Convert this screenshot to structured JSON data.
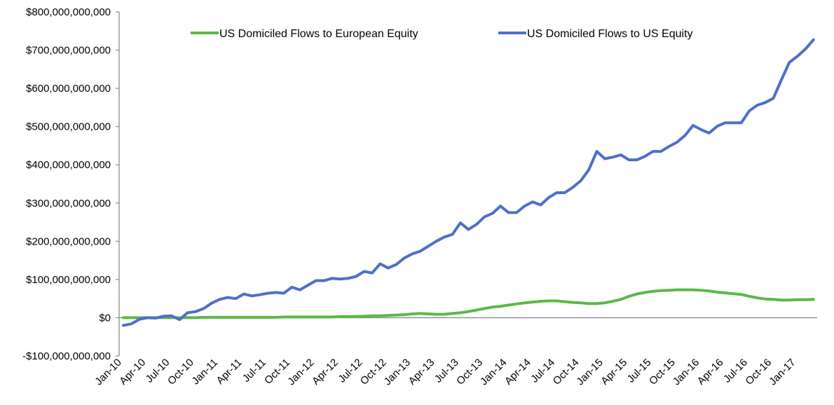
{
  "chart_data": {
    "type": "line",
    "title": "",
    "xlabel": "",
    "ylabel": "",
    "ylim": [
      -100000000000,
      800000000000
    ],
    "y_ticks": [
      -100000000000,
      0,
      100000000000,
      200000000000,
      300000000000,
      400000000000,
      500000000000,
      600000000000,
      700000000000,
      800000000000
    ],
    "y_tick_labels": [
      "-$100,000,000,000",
      "$0",
      "$100,000,000,000",
      "$200,000,000,000",
      "$300,000,000,000",
      "$400,000,000,000",
      "$500,000,000,000",
      "$600,000,000,000",
      "$700,000,000,000",
      "$800,000,000,000"
    ],
    "x_tick_labels": [
      "Jan-10",
      "Apr-10",
      "Jul-10",
      "Oct-10",
      "Jan-11",
      "Apr-11",
      "Jul-11",
      "Oct-11",
      "Jan-12",
      "Apr-12",
      "Jul-12",
      "Oct-12",
      "Jan-13",
      "Apr-13",
      "Jul-13",
      "Oct-13",
      "Jan-14",
      "Apr-14",
      "Jul-14",
      "Oct-14",
      "Jan-15",
      "Apr-15",
      "Jul-15",
      "Oct-15",
      "Jan-16",
      "Apr-16",
      "Jul-16",
      "Oct-16",
      "Jan-17"
    ],
    "x": [
      "Jan-10",
      "Feb-10",
      "Mar-10",
      "Apr-10",
      "May-10",
      "Jun-10",
      "Jul-10",
      "Aug-10",
      "Sep-10",
      "Oct-10",
      "Nov-10",
      "Dec-10",
      "Jan-11",
      "Feb-11",
      "Mar-11",
      "Apr-11",
      "May-11",
      "Jun-11",
      "Jul-11",
      "Aug-11",
      "Sep-11",
      "Oct-11",
      "Nov-11",
      "Dec-11",
      "Jan-12",
      "Feb-12",
      "Mar-12",
      "Apr-12",
      "May-12",
      "Jun-12",
      "Jul-12",
      "Aug-12",
      "Sep-12",
      "Oct-12",
      "Nov-12",
      "Dec-12",
      "Jan-13",
      "Feb-13",
      "Mar-13",
      "Apr-13",
      "May-13",
      "Jun-13",
      "Jul-13",
      "Aug-13",
      "Sep-13",
      "Oct-13",
      "Nov-13",
      "Dec-13",
      "Jan-14",
      "Feb-14",
      "Mar-14",
      "Apr-14",
      "May-14",
      "Jun-14",
      "Jul-14",
      "Aug-14",
      "Sep-14",
      "Oct-14",
      "Nov-14",
      "Dec-14",
      "Jan-15",
      "Feb-15",
      "Mar-15",
      "Apr-15",
      "May-15",
      "Jun-15",
      "Jul-15",
      "Aug-15",
      "Sep-15",
      "Oct-15",
      "Nov-15",
      "Dec-15",
      "Jan-16",
      "Feb-16",
      "Mar-16",
      "Apr-16",
      "May-16",
      "Jun-16",
      "Jul-16",
      "Aug-16",
      "Sep-16",
      "Oct-16",
      "Nov-16",
      "Dec-16",
      "Jan-17",
      "Feb-17",
      "Mar-17"
    ],
    "value_unit": "billions USD",
    "grid": false,
    "legend_position": "top",
    "series": [
      {
        "name": "US Domiciled Flows to European Equity",
        "color": "#5cb846",
        "values": [
          0,
          0,
          0,
          0,
          0,
          0,
          0,
          0,
          0,
          0,
          1,
          1,
          1,
          1,
          1,
          1,
          1,
          1,
          1,
          1,
          2,
          2,
          2,
          2,
          2,
          2,
          2,
          3,
          3,
          3,
          4,
          5,
          5,
          6,
          7,
          8,
          10,
          11,
          10,
          9,
          9,
          11,
          13,
          16,
          20,
          24,
          28,
          30,
          33,
          36,
          39,
          41,
          43,
          44,
          44,
          42,
          40,
          39,
          37,
          37,
          39,
          43,
          48,
          56,
          62,
          66,
          69,
          71,
          72,
          73,
          73,
          73,
          72,
          70,
          67,
          65,
          63,
          61,
          56,
          52,
          49,
          48,
          46,
          46,
          47,
          47,
          48
        ]
      },
      {
        "name": "US Domiciled Flows to US Equity",
        "color": "#4f6fc9",
        "values": [
          -20,
          -16,
          -4,
          0,
          -1,
          4,
          5,
          -5,
          13,
          16,
          24,
          38,
          48,
          53,
          50,
          62,
          57,
          60,
          64,
          66,
          64,
          80,
          73,
          85,
          97,
          97,
          103,
          101,
          103,
          108,
          121,
          117,
          141,
          130,
          139,
          156,
          167,
          174,
          187,
          200,
          211,
          218,
          248,
          231,
          244,
          264,
          273,
          292,
          275,
          275,
          292,
          303,
          295,
          314,
          327,
          327,
          341,
          358,
          387,
          435,
          416,
          420,
          426,
          413,
          413,
          422,
          435,
          435,
          448,
          459,
          477,
          503,
          492,
          483,
          501,
          510,
          510,
          510,
          541,
          556,
          563,
          574,
          622,
          668,
          684,
          703,
          727
        ]
      }
    ]
  }
}
